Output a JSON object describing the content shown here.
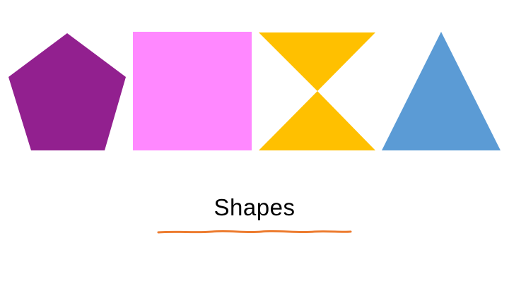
{
  "slide": {
    "title": "Shapes"
  },
  "shapes": [
    {
      "name": "pentagon",
      "color": "#92208F"
    },
    {
      "name": "square",
      "color": "#FF88FF"
    },
    {
      "name": "hourglass",
      "color": "#FFC000"
    },
    {
      "name": "triangle",
      "color": "#5B9BD5"
    }
  ],
  "underline": {
    "color": "#ED7D31"
  }
}
